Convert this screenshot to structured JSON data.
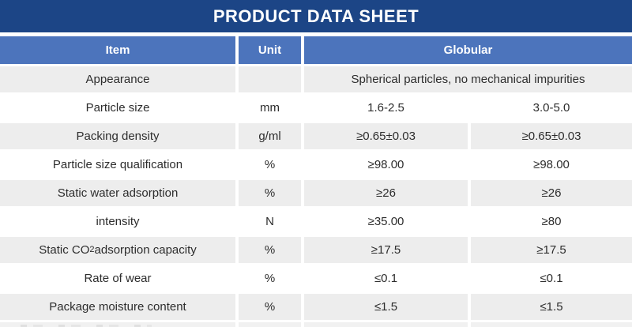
{
  "title": "PRODUCT DATA SHEET",
  "colors": {
    "title_bar_bg": "#1c4586",
    "header_bg": "#4c74bc",
    "header_text": "#ffffff",
    "row_alt_bg": "#ededed",
    "row_bg": "#ffffff",
    "body_text": "#2d2d2d"
  },
  "table": {
    "headers": {
      "item": "Item",
      "unit": "Unit",
      "group": "Globular"
    },
    "rows": [
      {
        "item": "Appearance",
        "unit": "",
        "merged_value": "Spherical particles, no mechanical impurities"
      },
      {
        "item": "Particle size",
        "unit": "mm",
        "value1": "1.6-2.5",
        "value2": "3.0-5.0"
      },
      {
        "item": "Packing density",
        "unit": "g/ml",
        "value1": "≥0.65±0.03",
        "value2": "≥0.65±0.03"
      },
      {
        "item": "Particle size qualification",
        "unit": "%",
        "value1": "≥98.00",
        "value2": "≥98.00"
      },
      {
        "item": "Static water adsorption",
        "unit": "%",
        "value1": "≥26",
        "value2": "≥26"
      },
      {
        "item": "intensity",
        "unit": "N",
        "value1": "≥35.00",
        "value2": "≥80"
      },
      {
        "item_pre": "Static CO",
        "item_sub": "2",
        "item_post": " adsorption capacity",
        "unit": "%",
        "value1": "≥17.5",
        "value2": "≥17.5"
      },
      {
        "item": "Rate of wear",
        "unit": "%",
        "value1": "≤0.1",
        "value2": "≤0.1"
      },
      {
        "item": "Package moisture content",
        "unit": "%",
        "value1": "≤1.5",
        "value2": "≤1.5"
      }
    ]
  }
}
